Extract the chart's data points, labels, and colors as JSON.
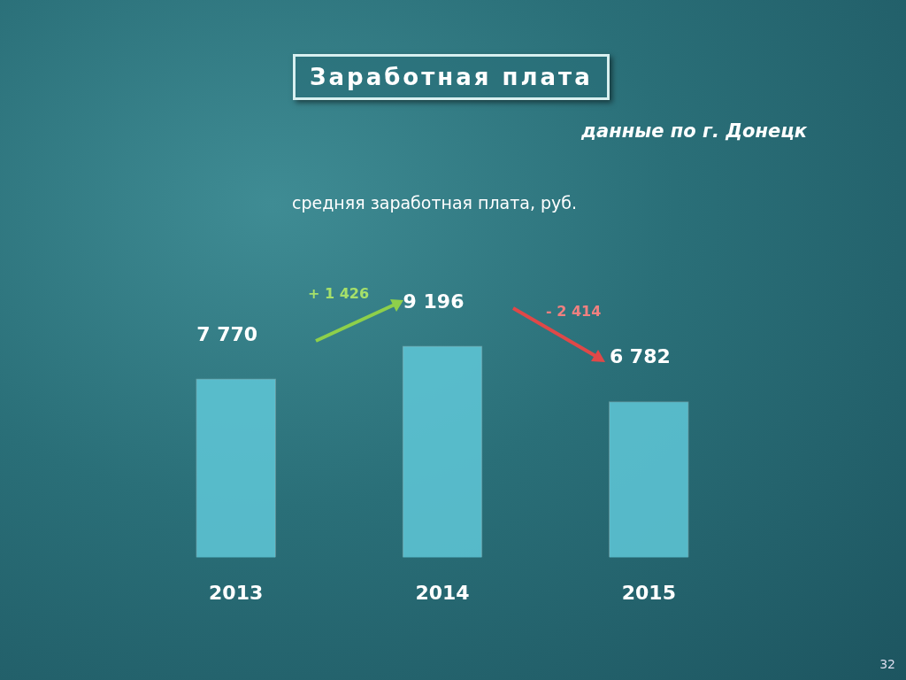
{
  "chart_data": {
    "type": "bar",
    "title": "Заработная плата",
    "subtitle": "средняя заработная плата, руб.",
    "categories": [
      "2013",
      "2014",
      "2015"
    ],
    "values": [
      7770,
      9196,
      6782
    ],
    "value_labels": [
      "7 770",
      "9 196",
      "6 782"
    ],
    "color": "#5fc8d8",
    "grid": false,
    "legend": false,
    "tick_labels": "x",
    "annotations": [
      "данные по г. Донецк",
      "+ 1 426",
      "- 2 414",
      "32"
    ]
  }
}
